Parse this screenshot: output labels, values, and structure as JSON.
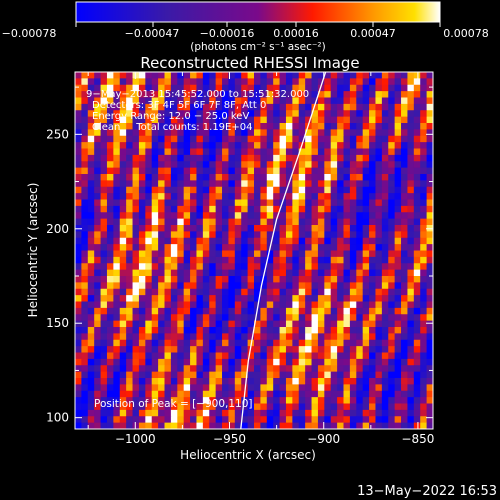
{
  "chart_data": {
    "type": "heatmap",
    "title": "Reconstructed RHESSI Image",
    "xlabel": "Heliocentric X (arcsec)",
    "ylabel": "Heliocentric Y (arcsec)",
    "xlim": [
      -1032,
      -842
    ],
    "ylim": [
      94,
      283
    ],
    "xticks": [
      {
        "value": -1000,
        "label": "−1000"
      },
      {
        "value": -950,
        "label": "−950"
      },
      {
        "value": -900,
        "label": "−900"
      },
      {
        "value": -850,
        "label": "−850"
      }
    ],
    "yticks": [
      {
        "value": 100,
        "label": "100"
      },
      {
        "value": 150,
        "label": "150"
      },
      {
        "value": 200,
        "label": "200"
      },
      {
        "value": 250,
        "label": "250"
      }
    ],
    "colorbar": {
      "range": [
        -0.00078,
        0.00078
      ],
      "tick_labels": [
        "−0.00078",
        "−0.00047",
        "−0.00016",
        "0.00016",
        "0.00047",
        "0.00078"
      ],
      "unit_text": "(photons cm⁻² s⁻¹ asec⁻²)"
    },
    "annotations": [
      "9−May−2013 15:45:52.000 to 15:51:32.000",
      "Detectors: 3F 4F 5F 6F 7F 8F, Att 0",
      "Energy Range: 12.0 − 25.0 keV",
      "Clean     Total counts: 1.19E+04"
    ],
    "peak_text": "Position of Peak = [−900,110]",
    "limb_curve": [
      [
        -944,
        94
      ],
      [
        -940,
        130
      ],
      [
        -933,
        170
      ],
      [
        -925,
        205
      ],
      [
        -913,
        240
      ],
      [
        -899,
        283
      ]
    ],
    "colors": {
      "negative": "#0000ff",
      "zero": "#7a0a8a",
      "positive": "#ff0000",
      "peak": "#ffff80"
    }
  },
  "footer": {
    "timestamp": "13−May−2022 16:53"
  }
}
